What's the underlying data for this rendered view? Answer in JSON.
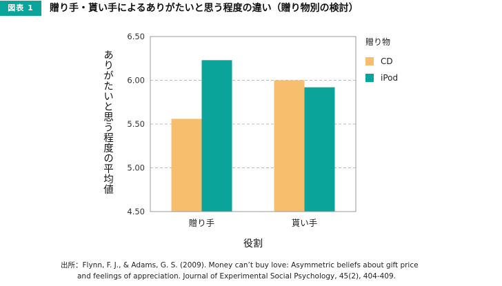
{
  "figure": {
    "badge": "図表 1",
    "title": "贈り手・貰い手によるありがたいと思う程度の違い（贈り物別の検討）"
  },
  "source": {
    "line1": "出所：Flynn, F. J., & Adams, G. S. (2009). Money can’t buy love: Asymmetric beliefs about gift price",
    "line2": "and feelings of appreciation. Journal of Experimental Social Psychology, 45(2), 404-409."
  },
  "chart_data": {
    "type": "bar",
    "title": "",
    "xlabel": "役割",
    "ylabel": "ありがたいと思う程度の平均値",
    "categories": [
      "贈り手",
      "貰い手"
    ],
    "series": [
      {
        "name": "CD",
        "color": "#f7be6e",
        "values": [
          5.56,
          6.0
        ]
      },
      {
        "name": "iPod",
        "color": "#0aa49a",
        "values": [
          6.23,
          5.92
        ]
      }
    ],
    "ylim": [
      4.5,
      6.5
    ],
    "yticks": [
      "4.50",
      "5.00",
      "5.50",
      "6.00",
      "6.50"
    ],
    "grid": "horizontal-dashed",
    "legend": {
      "title": "贈り物",
      "position": "right"
    }
  }
}
